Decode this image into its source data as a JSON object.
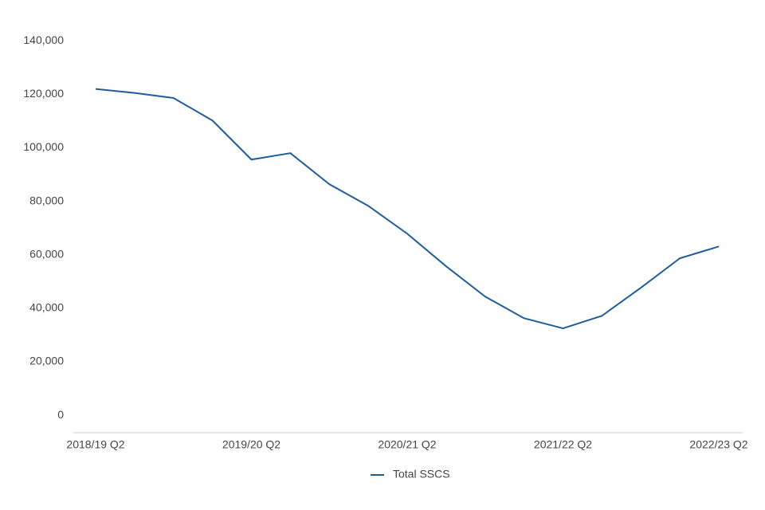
{
  "chart_data": {
    "type": "line",
    "categories": [
      "2018/19 Q2",
      null,
      null,
      null,
      "2019/20 Q2",
      null,
      null,
      null,
      "2020/21 Q2",
      null,
      null,
      null,
      "2021/22 Q2",
      null,
      null,
      null,
      "2022/23 Q2"
    ],
    "series": [
      {
        "name": "Total SSCS",
        "color": "#1f5c99",
        "values": [
          122000,
          120500,
          118600,
          110200,
          95600,
          98000,
          86400,
          78300,
          67900,
          55700,
          44400,
          36300,
          32500,
          37200,
          47700,
          58700,
          63100
        ]
      }
    ],
    "ylim": [
      -6500,
      140000
    ],
    "yticks": [
      0,
      {
        "value": 20000,
        "label": "20,000"
      },
      {
        "value": 40000,
        "label": "40,000"
      },
      {
        "value": 60000,
        "label": "60,000"
      },
      {
        "value": 80000,
        "label": "80,000"
      },
      {
        "value": 100000,
        "label": "100,000"
      },
      {
        "value": 120000,
        "label": "120,000"
      },
      {
        "value": 140000,
        "label": "140,000"
      }
    ],
    "grid": false,
    "legend": "bottom"
  }
}
